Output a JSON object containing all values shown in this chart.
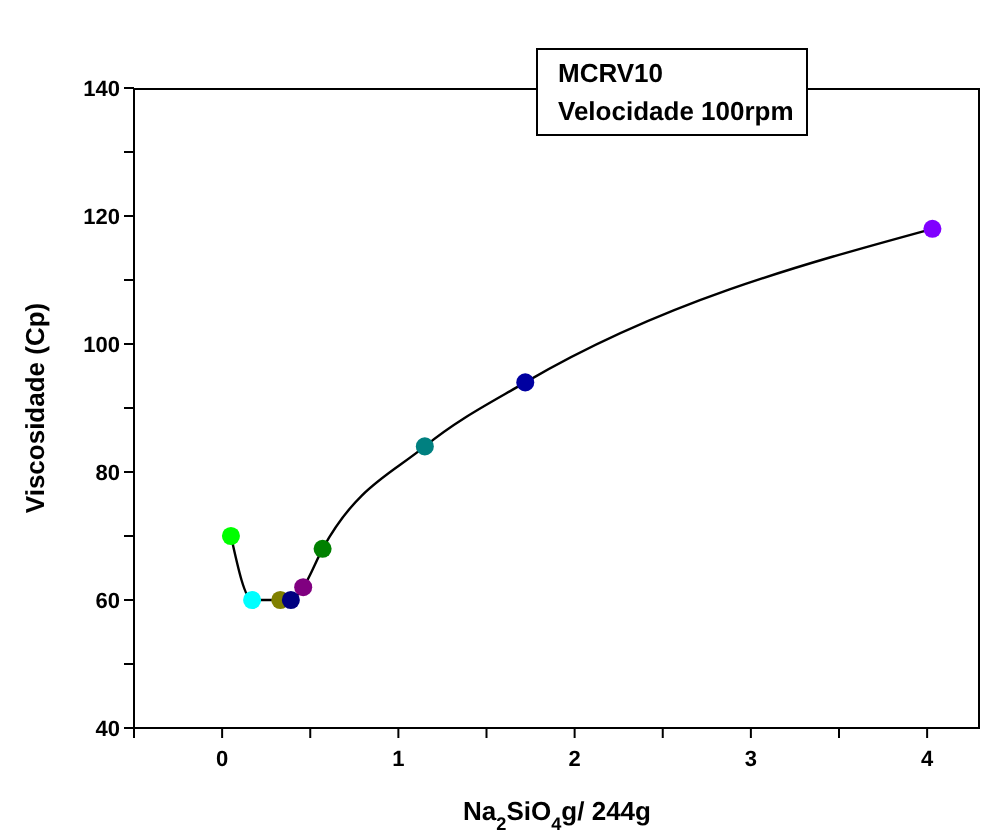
{
  "chart_data": {
    "type": "scatter",
    "xlabel": "Na$_{2}$SiO$_{4}$g/ 244g",
    "ylabel": "Viscosidade (Cp)",
    "annotations": [
      "MCRV10",
      "Velocidade 100rpm"
    ],
    "x": [
      0.05,
      0.17,
      0.33,
      0.39,
      0.46,
      0.57,
      1.15,
      1.72,
      4.03
    ],
    "series": [
      {
        "type": "line",
        "color": "#000000",
        "marker": "none",
        "values": [
          70,
          60,
          60,
          60,
          62,
          68,
          84,
          94,
          118
        ]
      },
      {
        "marker": "circle",
        "colors": [
          "#00ff00",
          "#00ffff",
          "#808000",
          "#000080",
          "#800080",
          "#008000",
          "#008080",
          "#0000a0",
          "#8000ff"
        ],
        "values": [
          70,
          60,
          60,
          60,
          62,
          68,
          84,
          94,
          118
        ]
      }
    ],
    "xlim": [
      -0.5,
      4.3
    ],
    "xticks": [
      {
        "value": -0.5,
        "label": null
      },
      0,
      {
        "value": 0.5,
        "label": null
      },
      1,
      {
        "value": 1.5,
        "label": null
      },
      2,
      {
        "value": 2.5,
        "label": null
      },
      3,
      {
        "value": 3.5,
        "label": null
      },
      4
    ],
    "ylim": [
      40,
      140
    ],
    "yticks": [
      40,
      {
        "value": 50,
        "label": null
      },
      60,
      {
        "value": 70,
        "label": null
      },
      80,
      {
        "value": 90,
        "label": null
      },
      100,
      {
        "value": 110,
        "label": null
      },
      120,
      {
        "value": 130,
        "label": null
      },
      140
    ],
    "grid": false
  }
}
